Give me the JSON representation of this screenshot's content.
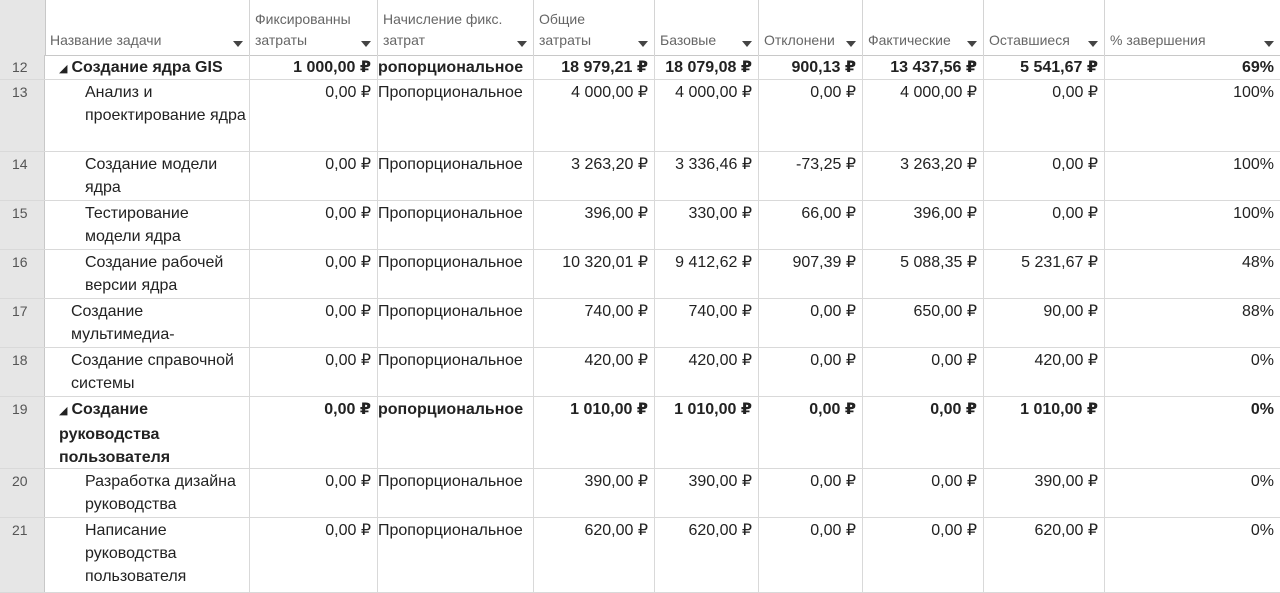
{
  "columns": {
    "name": "Название задачи",
    "fixed_cost": [
      "Фиксированны",
      "затраты"
    ],
    "accrual": [
      "Начисление фикс.",
      "затрат"
    ],
    "total": [
      "Общие",
      "затраты"
    ],
    "baseline": "Базовые",
    "variance": "Отклонени",
    "actual": "Фактические",
    "remaining": "Оставшиеся",
    "percent": "% завершения"
  },
  "rows": [
    {
      "id": "12",
      "name": "Создание ядра GIS",
      "summary": true,
      "fixed": "1 000,00 ₽",
      "accrual": "ропорциональное",
      "total": "18 979,21 ₽",
      "baseline": "18 079,08 ₽",
      "variance": "900,13 ₽",
      "actual": "13 437,56 ₽",
      "remaining": "5 541,67 ₽",
      "percent": "69%"
    },
    {
      "id": "13",
      "name": "Анализ и проектирование ядра",
      "fixed": "0,00 ₽",
      "accrual": "Пропорциональное",
      "total": "4 000,00 ₽",
      "baseline": "4 000,00 ₽",
      "variance": "0,00 ₽",
      "actual": "4 000,00 ₽",
      "remaining": "0,00 ₽",
      "percent": "100%"
    },
    {
      "id": "14",
      "name": "Создание модели ядра",
      "fixed": "0,00 ₽",
      "accrual": "Пропорциональное",
      "total": "3 263,20 ₽",
      "baseline": "3 336,46 ₽",
      "variance": "-73,25 ₽",
      "actual": "3 263,20 ₽",
      "remaining": "0,00 ₽",
      "percent": "100%"
    },
    {
      "id": "15",
      "name": "Тестирование модели ядра",
      "fixed": "0,00 ₽",
      "accrual": "Пропорциональное",
      "total": "396,00 ₽",
      "baseline": "330,00 ₽",
      "variance": "66,00 ₽",
      "actual": "396,00 ₽",
      "remaining": "0,00 ₽",
      "percent": "100%"
    },
    {
      "id": "16",
      "name": "Создание рабочей версии ядра",
      "fixed": "0,00 ₽",
      "accrual": "Пропорциональное",
      "total": "10 320,01 ₽",
      "baseline": "9 412,62 ₽",
      "variance": "907,39 ₽",
      "actual": "5 088,35 ₽",
      "remaining": "5 231,67 ₽",
      "percent": "48%"
    },
    {
      "id": "17",
      "name": "Создание мультимедиа-наполнения",
      "fixed": "0,00 ₽",
      "accrual": "Пропорциональное",
      "total": "740,00 ₽",
      "baseline": "740,00 ₽",
      "variance": "0,00 ₽",
      "actual": "650,00 ₽",
      "remaining": "90,00 ₽",
      "percent": "88%"
    },
    {
      "id": "18",
      "name": "Создание справочной системы",
      "fixed": "0,00 ₽",
      "accrual": "Пропорциональное",
      "total": "420,00 ₽",
      "baseline": "420,00 ₽",
      "variance": "0,00 ₽",
      "actual": "0,00 ₽",
      "remaining": "420,00 ₽",
      "percent": "0%"
    },
    {
      "id": "19",
      "name": "Создание руководства пользователя",
      "summary": true,
      "fixed": "0,00 ₽",
      "accrual": "ропорциональное",
      "total": "1 010,00 ₽",
      "baseline": "1 010,00 ₽",
      "variance": "0,00 ₽",
      "actual": "0,00 ₽",
      "remaining": "1 010,00 ₽",
      "percent": "0%"
    },
    {
      "id": "20",
      "name": "Разработка дизайна руководства",
      "fixed": "0,00 ₽",
      "accrual": "Пропорциональное",
      "total": "390,00 ₽",
      "baseline": "390,00 ₽",
      "variance": "0,00 ₽",
      "actual": "0,00 ₽",
      "remaining": "390,00 ₽",
      "percent": "0%"
    },
    {
      "id": "21",
      "name": "Написание руководства пользователя",
      "fixed": "0,00 ₽",
      "accrual": "Пропорциональное",
      "total": "620,00 ₽",
      "baseline": "620,00 ₽",
      "variance": "0,00 ₽",
      "actual": "0,00 ₽",
      "remaining": "620,00 ₽",
      "percent": "0%"
    }
  ]
}
